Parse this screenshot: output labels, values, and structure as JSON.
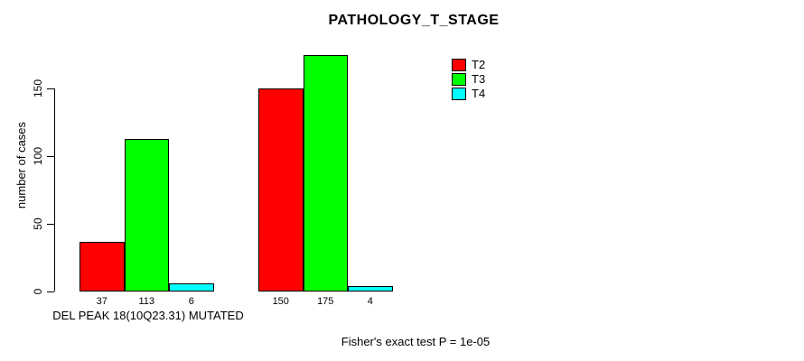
{
  "chart_data": {
    "type": "bar",
    "title": "PATHOLOGY_T_STAGE",
    "xlabel": "DEL PEAK 18(10Q23.31) MUTATED",
    "ylabel": "number of cases",
    "yticks": [
      0,
      50,
      100,
      150
    ],
    "ylim": [
      0,
      175
    ],
    "grid": false,
    "background": "#ffffff",
    "legend_position": "top-right",
    "show_values_below_bars": true,
    "groups": [
      "DEL PEAK 18(10Q23.31) MUTATED",
      ""
    ],
    "series": [
      {
        "name": "T2",
        "color": "#ff0000",
        "values": [
          37,
          150
        ]
      },
      {
        "name": "T3",
        "color": "#00ff00",
        "values": [
          113,
          175
        ]
      },
      {
        "name": "T4",
        "color": "#00ffff",
        "values": [
          6,
          4
        ]
      }
    ],
    "annotation": "Fisher's exact test P = 1e-05"
  }
}
